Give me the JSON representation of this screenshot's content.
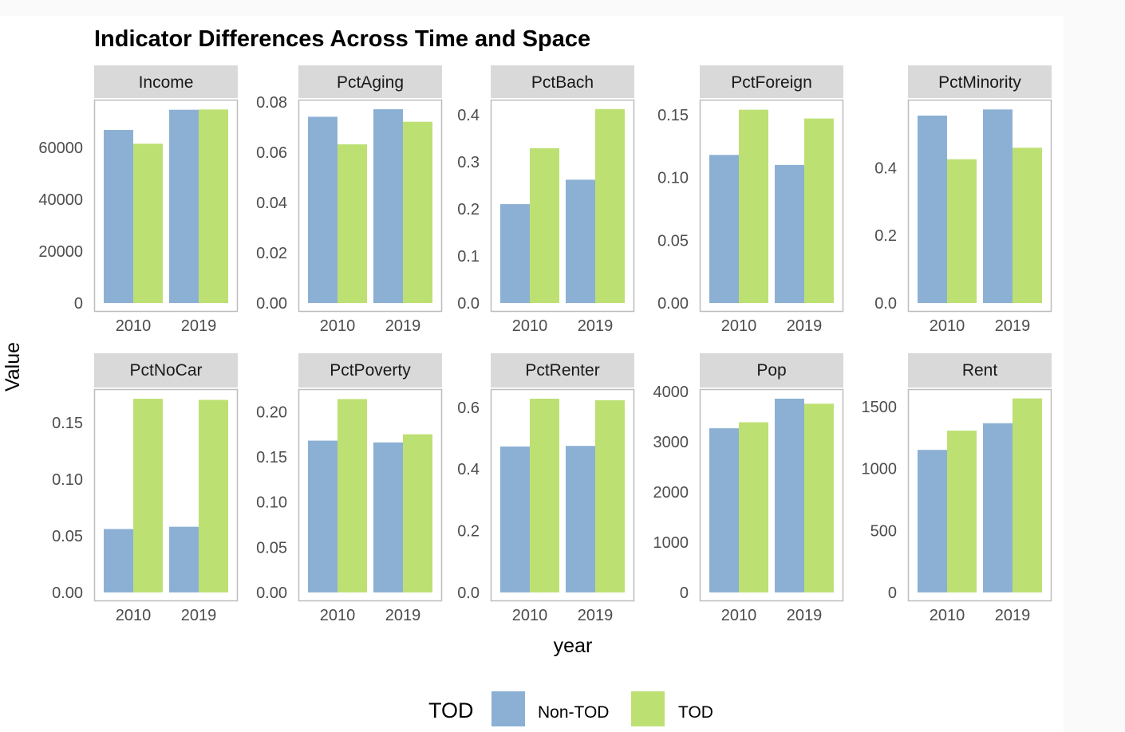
{
  "chart_data": {
    "type": "bar",
    "title": "Indicator Differences Across Time and Space",
    "xlabel": "year",
    "ylabel": "Value",
    "categories": [
      "2010",
      "2019"
    ],
    "legend": {
      "title": "TOD",
      "position": "bottom",
      "entries": [
        {
          "name": "Non-TOD",
          "color": "#8cb0d4"
        },
        {
          "name": "TOD",
          "color": "#bde073"
        }
      ]
    },
    "grid": false,
    "panels": [
      {
        "name": "Income",
        "ylim": [
          0,
          78500
        ],
        "ticks": [
          "0",
          "20000",
          "40000",
          "60000"
        ],
        "tick_values": [
          0,
          20000,
          40000,
          60000
        ],
        "series": [
          {
            "name": "Non-TOD",
            "values": [
              66800,
              74600
            ]
          },
          {
            "name": "TOD",
            "values": [
              61500,
              74700
            ]
          }
        ]
      },
      {
        "name": "PctAging",
        "ylim": [
          0,
          0.081
        ],
        "ticks": [
          "0.00",
          "0.02",
          "0.04",
          "0.06",
          "0.08"
        ],
        "tick_values": [
          0,
          0.02,
          0.04,
          0.06,
          0.08
        ],
        "series": [
          {
            "name": "Non-TOD",
            "values": [
              0.0742,
              0.0772
            ]
          },
          {
            "name": "TOD",
            "values": [
              0.0632,
              0.0722
            ]
          }
        ]
      },
      {
        "name": "PctBach",
        "ylim": [
          0,
          0.432
        ],
        "ticks": [
          "0.0",
          "0.1",
          "0.2",
          "0.3",
          "0.4"
        ],
        "tick_values": [
          0,
          0.1,
          0.2,
          0.3,
          0.4
        ],
        "series": [
          {
            "name": "Non-TOD",
            "values": [
              0.21,
              0.262
            ]
          },
          {
            "name": "TOD",
            "values": [
              0.329,
              0.412
            ]
          }
        ]
      },
      {
        "name": "PctForeign",
        "ylim": [
          0,
          0.162
        ],
        "ticks": [
          "0.00",
          "0.05",
          "0.10",
          "0.15"
        ],
        "tick_values": [
          0,
          0.05,
          0.1,
          0.15
        ],
        "series": [
          {
            "name": "Non-TOD",
            "values": [
              0.118,
              0.11
            ]
          },
          {
            "name": "TOD",
            "values": [
              0.154,
              0.147
            ]
          }
        ]
      },
      {
        "name": "PctMinority",
        "ylim": [
          0,
          0.601
        ],
        "ticks": [
          "0.0",
          "0.2",
          "0.4"
        ],
        "tick_values": [
          0,
          0.2,
          0.4
        ],
        "series": [
          {
            "name": "Non-TOD",
            "values": [
              0.554,
              0.572
            ]
          },
          {
            "name": "TOD",
            "values": [
              0.425,
              0.459
            ]
          }
        ]
      },
      {
        "name": "PctNoCar",
        "ylim": [
          0,
          0.1795
        ],
        "ticks": [
          "0.00",
          "0.05",
          "0.10",
          "0.15"
        ],
        "tick_values": [
          0,
          0.05,
          0.1,
          0.15
        ],
        "series": [
          {
            "name": "Non-TOD",
            "values": [
              0.056,
              0.058
            ]
          },
          {
            "name": "TOD",
            "values": [
              0.171,
              0.17
            ]
          }
        ]
      },
      {
        "name": "PctPoverty",
        "ylim": [
          0,
          0.225
        ],
        "ticks": [
          "0.00",
          "0.05",
          "0.10",
          "0.15",
          "0.20"
        ],
        "tick_values": [
          0,
          0.05,
          0.1,
          0.15,
          0.2
        ],
        "series": [
          {
            "name": "Non-TOD",
            "values": [
              0.168,
              0.166
            ]
          },
          {
            "name": "TOD",
            "values": [
              0.214,
              0.175
            ]
          }
        ]
      },
      {
        "name": "PctRenter",
        "ylim": [
          0,
          0.659
        ],
        "ticks": [
          "0.0",
          "0.2",
          "0.4",
          "0.6"
        ],
        "tick_values": [
          0,
          0.2,
          0.4,
          0.6
        ],
        "series": [
          {
            "name": "Non-TOD",
            "values": [
              0.473,
              0.475
            ]
          },
          {
            "name": "TOD",
            "values": [
              0.628,
              0.623
            ]
          }
        ]
      },
      {
        "name": "Pop",
        "ylim": [
          0,
          4050
        ],
        "ticks": [
          "0",
          "1000",
          "2000",
          "3000",
          "4000"
        ],
        "tick_values": [
          0,
          1000,
          2000,
          3000,
          4000
        ],
        "series": [
          {
            "name": "Non-TOD",
            "values": [
              3270,
              3860
            ]
          },
          {
            "name": "TOD",
            "values": [
              3390,
              3760
            ]
          }
        ]
      },
      {
        "name": "Rent",
        "ylim": [
          0,
          1640
        ],
        "ticks": [
          "0",
          "500",
          "1000",
          "1500"
        ],
        "tick_values": [
          0,
          500,
          1000,
          1500
        ],
        "series": [
          {
            "name": "Non-TOD",
            "values": [
              1150,
              1365
            ]
          },
          {
            "name": "TOD",
            "values": [
              1305,
              1565
            ]
          }
        ]
      }
    ]
  }
}
